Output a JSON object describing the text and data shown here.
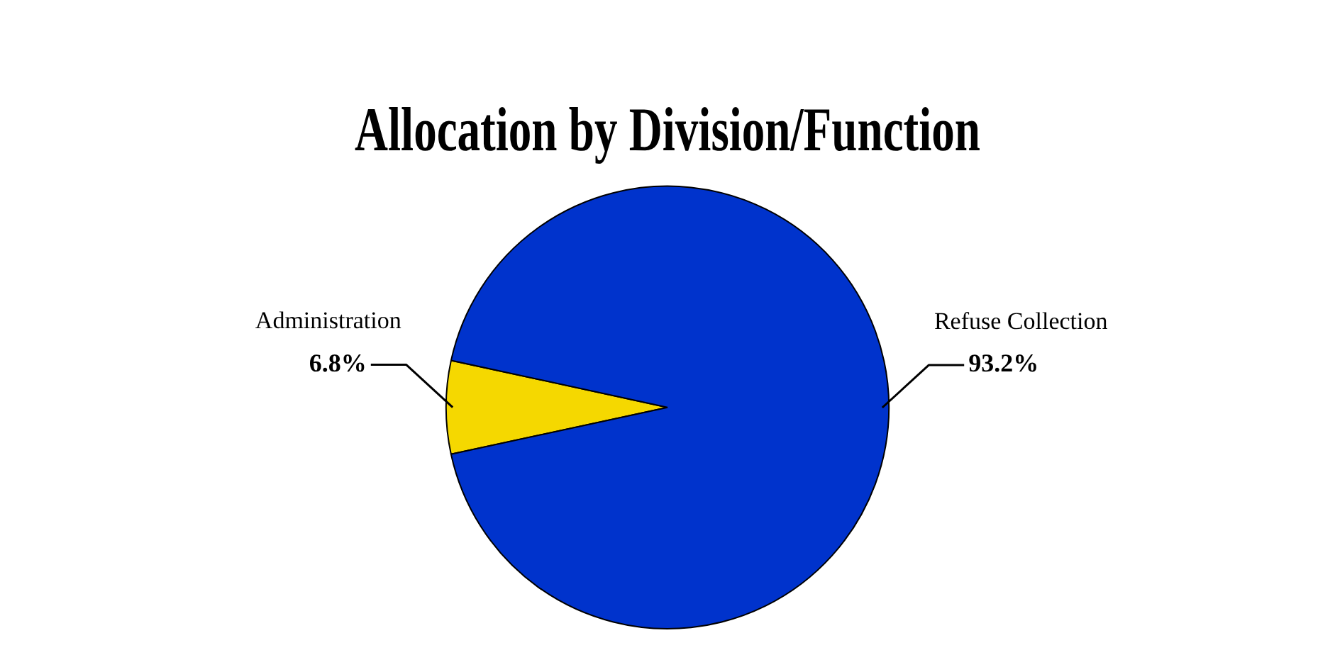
{
  "chart_data": {
    "type": "pie",
    "title": "Allocation by Division/Function",
    "categories": [
      "Administration",
      "Refuse Collection"
    ],
    "values": [
      6.8,
      93.2
    ],
    "colors": [
      "#f5d800",
      "#0033cc"
    ],
    "value_labels": [
      "6.8%",
      "93.2%"
    ],
    "legend": false
  }
}
